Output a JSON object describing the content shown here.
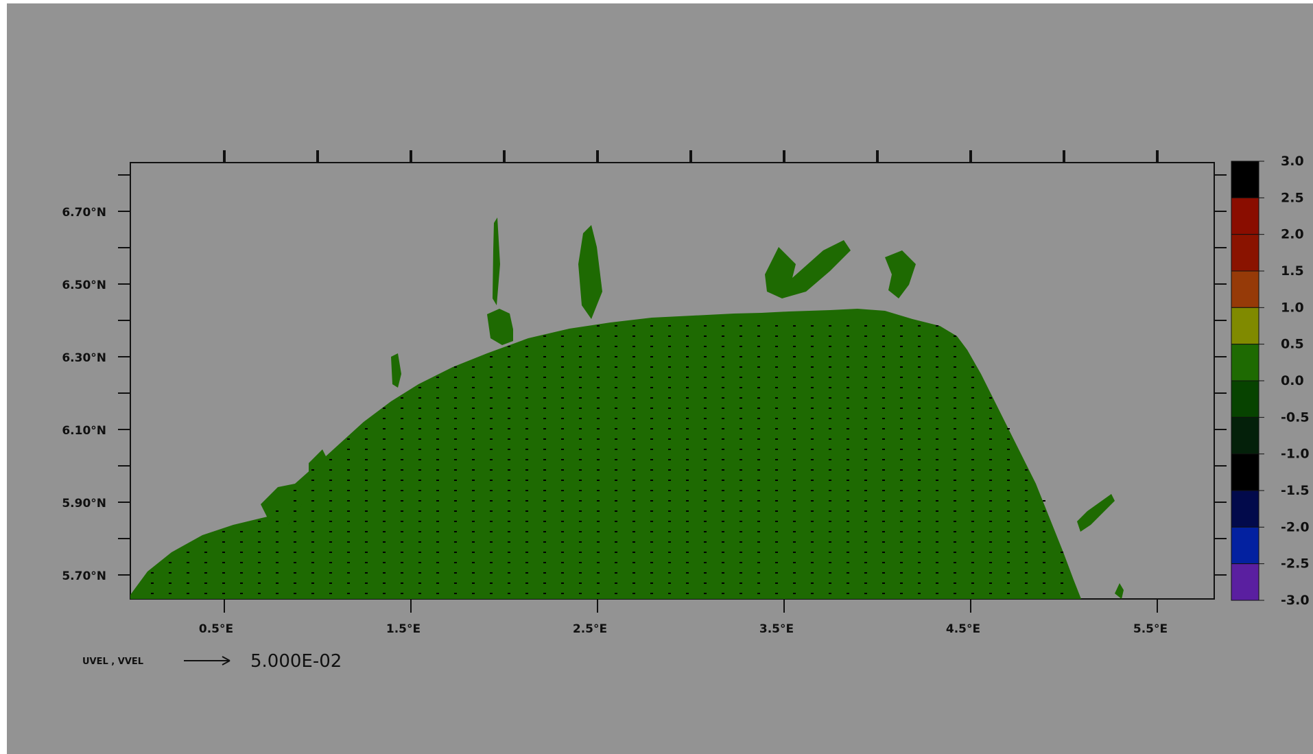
{
  "map": {
    "x_ticks": [
      "0.5°E",
      "1.5°E",
      "2.5°E",
      "3.5°E",
      "4.5°E",
      "5.5°E"
    ],
    "y_ticks": [
      "6.70°N",
      "6.50°N",
      "6.30°N",
      "6.10°N",
      "5.90°N",
      "5.70°N"
    ],
    "land_color": "#1e6a02",
    "background_color": "#939393",
    "vector_legend": {
      "label": "UVEL , VVEL",
      "value": "5.000E-02"
    }
  },
  "colorbar": {
    "labels": [
      "3.0",
      "2.5",
      "2.0",
      "1.5",
      "1.0",
      "0.5",
      "0.0",
      "-0.5",
      "-1.0",
      "-1.5",
      "-2.0",
      "-2.5",
      "-3.0"
    ],
    "colors": [
      "#000000",
      "#8a0d00",
      "#8a1300",
      "#963a08",
      "#808a00",
      "#1e6a02",
      "#074300",
      "#04200a",
      "#000000",
      "#020a4b",
      "#0321a0",
      "#5a1fa0"
    ]
  }
}
